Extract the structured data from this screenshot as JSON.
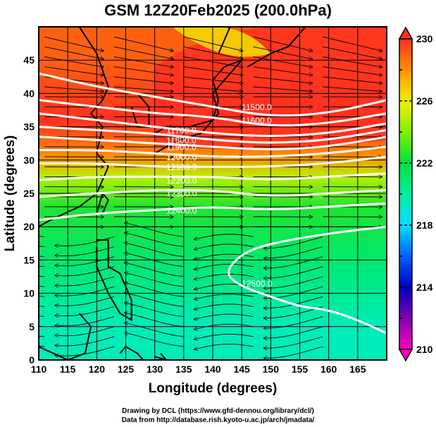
{
  "title": "GSM 12Z20Feb2025 (200.0hPa)",
  "credits": {
    "line1": "Drawing by DCL (https://www.gfd-dennou.org/library/dcl/)",
    "line2": "Data from http://database.rish.kyoto-u.ac.jp/arch/jmadata/"
  },
  "chart_data": {
    "type": "heatmap",
    "title": "GSM 12Z20Feb2025 (200.0hPa)",
    "xlabel": "Longitude (degrees)",
    "ylabel": "Latitude  (degrees)",
    "xlim": [
      110,
      170
    ],
    "ylim": [
      0,
      50
    ],
    "xticks": [
      110,
      115,
      120,
      125,
      130,
      135,
      140,
      145,
      150,
      155,
      160,
      165
    ],
    "yticks": [
      0,
      5,
      10,
      15,
      20,
      25,
      30,
      35,
      40,
      45
    ],
    "grid": true,
    "shading_variable": "temperature (K)",
    "colorbar": {
      "placement": "right",
      "min": 210,
      "max": 230,
      "tick_labels": [
        230,
        226,
        222,
        218,
        214,
        210
      ],
      "stops": [
        {
          "value": 210,
          "color": "#ff00c0"
        },
        {
          "value": 212,
          "color": "#8000b0"
        },
        {
          "value": 214,
          "color": "#0000c0"
        },
        {
          "value": 216,
          "color": "#0060ff"
        },
        {
          "value": 218,
          "color": "#00e0ff"
        },
        {
          "value": 220,
          "color": "#00f0a0"
        },
        {
          "value": 222,
          "color": "#00e040"
        },
        {
          "value": 224,
          "color": "#80f000"
        },
        {
          "value": 226,
          "color": "#f0f000"
        },
        {
          "value": 228,
          "color": "#ff9000"
        },
        {
          "value": 230,
          "color": "#ff3020"
        }
      ],
      "extend": "both"
    },
    "temperature_bands": [
      {
        "lat_range": [
          0,
          10
        ],
        "value": 219.5
      },
      {
        "lat_range": [
          10,
          20
        ],
        "value": 221
      },
      {
        "lat_range": [
          20,
          26
        ],
        "value": 222.5
      },
      {
        "lat_range": [
          26,
          29
        ],
        "value": 225
      },
      {
        "lat_range": [
          29,
          32
        ],
        "value": 228
      },
      {
        "lat_range": [
          32,
          40
        ],
        "value": 230
      },
      {
        "lat_range": [
          40,
          50
        ],
        "value": 229
      }
    ],
    "contours": {
      "variable": "geopotential height (m)",
      "color": "#ffffff",
      "lines": [
        {
          "value": 11500,
          "points": [
            [
              110,
              43
            ],
            [
              120,
              41
            ],
            [
              130,
              39.5
            ],
            [
              140,
              38
            ],
            [
              150,
              36.5
            ],
            [
              160,
              37
            ],
            [
              170,
              39
            ]
          ]
        },
        {
          "value": 11600,
          "points": [
            [
              110,
              39
            ],
            [
              120,
              38
            ],
            [
              130,
              37
            ],
            [
              140,
              36.5
            ],
            [
              150,
              35
            ],
            [
              160,
              35.5
            ],
            [
              170,
              37
            ]
          ]
        },
        {
          "value": 11700,
          "points": [
            [
              110,
              37
            ],
            [
              120,
              36
            ],
            [
              130,
              35
            ],
            [
              140,
              34
            ],
            [
              150,
              33.5
            ],
            [
              160,
              34
            ],
            [
              170,
              35.5
            ]
          ]
        },
        {
          "value": 11800,
          "points": [
            [
              110,
              35
            ],
            [
              120,
              34.5
            ],
            [
              130,
              34
            ],
            [
              140,
              33
            ],
            [
              150,
              32.5
            ],
            [
              160,
              33
            ],
            [
              170,
              34.5
            ]
          ]
        },
        {
          "value": 11900,
          "points": [
            [
              110,
              33.5
            ],
            [
              120,
              33
            ],
            [
              130,
              32.5
            ],
            [
              140,
              32
            ],
            [
              150,
              31.5
            ],
            [
              160,
              32
            ],
            [
              170,
              33.5
            ]
          ]
        },
        {
          "value": 12000,
          "points": [
            [
              110,
              31.5
            ],
            [
              120,
              31.5
            ],
            [
              130,
              31
            ],
            [
              140,
              30.5
            ],
            [
              150,
              30.5
            ],
            [
              160,
              31
            ],
            [
              170,
              32
            ]
          ]
        },
        {
          "value": 12100,
          "points": [
            [
              110,
              29.5
            ],
            [
              120,
              29.5
            ],
            [
              130,
              29
            ],
            [
              140,
              29
            ],
            [
              150,
              29
            ],
            [
              160,
              29.5
            ],
            [
              170,
              30.5
            ]
          ]
        },
        {
          "value": 12200,
          "points": [
            [
              110,
              27
            ],
            [
              120,
              27.5
            ],
            [
              130,
              27.5
            ],
            [
              140,
              27.5
            ],
            [
              150,
              27
            ],
            [
              160,
              27.5
            ],
            [
              170,
              28
            ]
          ]
        },
        {
          "value": 12300,
          "points": [
            [
              110,
              24.5
            ],
            [
              120,
              25
            ],
            [
              130,
              25.5
            ],
            [
              140,
              25.5
            ],
            [
              150,
              24.5
            ],
            [
              160,
              25
            ],
            [
              170,
              25.5
            ]
          ]
        },
        {
          "value": 12400,
          "points": [
            [
              110,
              21
            ],
            [
              120,
              22
            ],
            [
              130,
              22.5
            ],
            [
              140,
              23
            ],
            [
              150,
              22.5
            ],
            [
              160,
              23
            ],
            [
              170,
              23.5
            ]
          ]
        },
        {
          "value": 12500,
          "points": [
            [
              170,
              20
            ],
            [
              160,
              19
            ],
            [
              150,
              17.5
            ],
            [
              145,
              16
            ],
            [
              142,
              13
            ],
            [
              145,
              11
            ],
            [
              150,
              9.5
            ],
            [
              155,
              8
            ],
            [
              160,
              7.5
            ],
            [
              165,
              6
            ],
            [
              170,
              4
            ]
          ]
        }
      ],
      "labels": [
        {
          "text": "11500.0",
          "lon": 145,
          "lat": 37.5
        },
        {
          "text": "11600.0",
          "lon": 145,
          "lat": 35.5
        },
        {
          "text": "11700.0",
          "lon": 132,
          "lat": 34
        },
        {
          "text": "11800.0",
          "lon": 132,
          "lat": 32.5
        },
        {
          "text": "11900.0",
          "lon": 132,
          "lat": 31.5
        },
        {
          "text": "12000.0",
          "lon": 132,
          "lat": 30
        },
        {
          "text": "12100.0",
          "lon": 132,
          "lat": 28.5
        },
        {
          "text": "12200.0",
          "lon": 132,
          "lat": 26.5
        },
        {
          "text": "12300.0",
          "lon": 132,
          "lat": 24.5
        },
        {
          "text": "12400.0",
          "lon": 132,
          "lat": 22
        },
        {
          "text": "12500.0",
          "lon": 145,
          "lat": 11
        }
      ]
    },
    "streamlines": {
      "color": "#000000",
      "description": "wind streamlines: westerly jet flow north of ~20N, easterly/recurving flow south of ~18N"
    }
  }
}
